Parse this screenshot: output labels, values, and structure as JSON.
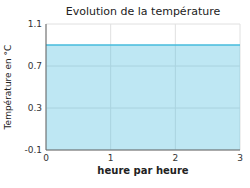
{
  "chart_data": {
    "type": "area",
    "title": "Evolution de la température",
    "xlabel": "heure par heure",
    "ylabel": "Température en °C",
    "x": [
      0,
      3
    ],
    "values": [
      0.9,
      0.9
    ],
    "color": "#44bbdd",
    "xlim": [
      0,
      3
    ],
    "ylim": [
      -0.1,
      1.1
    ],
    "xticks": [
      0,
      1,
      2,
      3
    ],
    "yticks": [
      -0.1,
      0.3,
      0.7,
      1.1
    ],
    "grid": true
  }
}
